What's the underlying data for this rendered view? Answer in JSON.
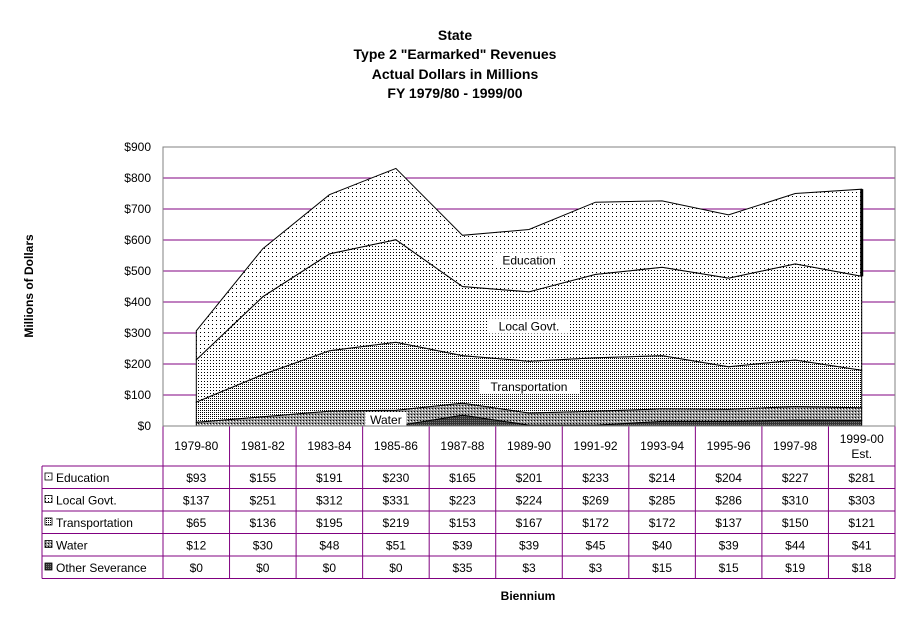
{
  "chart_data": {
    "type": "area",
    "title_lines": [
      "State",
      "Type 2 \"Earmarked\" Revenues",
      "Actual Dollars in Millions",
      "FY 1979/80 - 1999/00"
    ],
    "xlabel": "Biennium",
    "ylabel": "Millions of Dollars",
    "ylim": [
      0,
      900
    ],
    "yticks": [
      0,
      100,
      200,
      300,
      400,
      500,
      600,
      700,
      800,
      900
    ],
    "ytick_labels": [
      "$0",
      "$100",
      "$200",
      "$300",
      "$400",
      "$500",
      "$600",
      "$700",
      "$800",
      "$900"
    ],
    "categories": [
      "1979-80",
      "1981-82",
      "1983-84",
      "1985-86",
      "1987-88",
      "1989-90",
      "1991-92",
      "1993-94",
      "1995-96",
      "1997-98",
      "1999-00 Est."
    ],
    "category_lines": [
      [
        "1979-80"
      ],
      [
        "1981-82"
      ],
      [
        "1983-84"
      ],
      [
        "1985-86"
      ],
      [
        "1987-88"
      ],
      [
        "1989-90"
      ],
      [
        "1991-92"
      ],
      [
        "1993-94"
      ],
      [
        "1995-96"
      ],
      [
        "1997-98"
      ],
      [
        "1999-00",
        "Est."
      ]
    ],
    "stack_order": [
      "Other Severance",
      "Water",
      "Transportation",
      "Local Govt.",
      "Education"
    ],
    "series": [
      {
        "name": "Education",
        "pattern": "dots-sparse",
        "values": [
          93,
          155,
          191,
          230,
          165,
          201,
          233,
          214,
          204,
          227,
          281
        ],
        "display": [
          "$93",
          "$155",
          "$191",
          "$230",
          "$165",
          "$201",
          "$233",
          "$214",
          "$204",
          "$227",
          "$281"
        ]
      },
      {
        "name": "Local Govt.",
        "pattern": "dots-medium",
        "values": [
          137,
          251,
          312,
          331,
          223,
          224,
          269,
          285,
          286,
          310,
          303
        ],
        "display": [
          "$137",
          "$251",
          "$312",
          "$331",
          "$223",
          "$224",
          "$269",
          "$285",
          "$286",
          "$310",
          "$303"
        ]
      },
      {
        "name": "Transportation",
        "pattern": "dots-dense",
        "values": [
          65,
          136,
          195,
          219,
          153,
          167,
          172,
          172,
          137,
          150,
          121
        ],
        "display": [
          "$65",
          "$136",
          "$195",
          "$219",
          "$153",
          "$167",
          "$172",
          "$172",
          "$137",
          "$150",
          "$121"
        ]
      },
      {
        "name": "Water",
        "pattern": "crosshatch",
        "values": [
          12,
          30,
          48,
          51,
          39,
          39,
          45,
          40,
          39,
          44,
          41
        ],
        "display": [
          "$12",
          "$30",
          "$48",
          "$51",
          "$39",
          "$39",
          "$45",
          "$40",
          "$39",
          "$44",
          "$41"
        ]
      },
      {
        "name": "Other Severance",
        "pattern": "dark-hatch",
        "values": [
          0,
          0,
          0,
          0,
          35,
          3,
          3,
          15,
          15,
          19,
          18
        ],
        "display": [
          "$0",
          "$0",
          "$0",
          "$0",
          "$35",
          "$3",
          "$3",
          "$15",
          "$15",
          "$19",
          "$18"
        ]
      }
    ],
    "area_labels": [
      "Education",
      "Local Govt.",
      "Transportation",
      "Water"
    ],
    "grid": true,
    "legend": "data table below plot",
    "colors": {
      "gridline": "#800080",
      "plot_background": "#ffffff",
      "ink": "#000000"
    }
  }
}
